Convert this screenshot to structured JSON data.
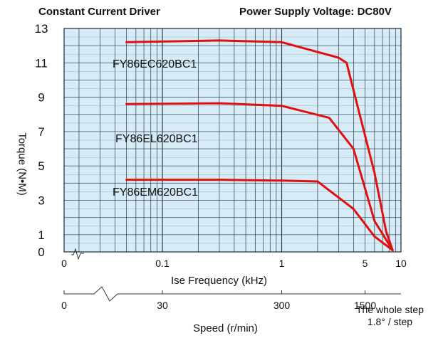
{
  "header": {
    "left_title": "Constant Current Driver",
    "right_title": "Power Supply Voltage: DC80V"
  },
  "chart_data": {
    "type": "line",
    "title": "Constant Current Driver",
    "subtitle": "Power Supply Voltage: DC80V",
    "xlabel": "Ise Frequency (kHz)",
    "ylabel": "Torque (N•M)",
    "xscale": "log",
    "xlim": [
      0.015,
      10
    ],
    "ylim": [
      0,
      13
    ],
    "x_ticks": [
      {
        "value": 0.1,
        "label": "0.1"
      },
      {
        "value": 1,
        "label": "1"
      },
      {
        "value": 5,
        "label": "5"
      },
      {
        "value": 10,
        "label": "10"
      }
    ],
    "x_zero_label": "0",
    "y_ticks": [
      {
        "value": 0,
        "label": "0"
      },
      {
        "value": 1,
        "label": "1"
      },
      {
        "value": 3,
        "label": "3"
      },
      {
        "value": 5,
        "label": "5"
      },
      {
        "value": 7,
        "label": "7"
      },
      {
        "value": 9,
        "label": "9"
      },
      {
        "value": 11,
        "label": "11"
      },
      {
        "value": 13,
        "label": "13"
      }
    ],
    "secondary_axis": {
      "label": "Speed (r/min)",
      "ticks": [
        {
          "value": 0,
          "label": "0"
        },
        {
          "value": 30,
          "label": "30",
          "at_khz": 0.1
        },
        {
          "value": 300,
          "label": "300",
          "at_khz": 1
        },
        {
          "value": 1500,
          "label": "1500",
          "at_khz": 5
        }
      ],
      "note": [
        "The whole step",
        "1.8° / step"
      ]
    },
    "series": [
      {
        "name": "FY86EC620BC1",
        "color": "#e01010",
        "x": [
          0.05,
          0.3,
          1,
          3,
          3.5,
          6,
          7.5,
          8.5
        ],
        "y": [
          12.2,
          12.3,
          12.2,
          11.3,
          11.0,
          4.6,
          1.2,
          0.1
        ]
      },
      {
        "name": "FY86EL620BC1",
        "color": "#e01010",
        "x": [
          0.05,
          0.3,
          1,
          2.5,
          4,
          6,
          8.5
        ],
        "y": [
          8.6,
          8.65,
          8.5,
          7.8,
          6.0,
          1.8,
          0.1
        ]
      },
      {
        "name": "FY86EM620BC1",
        "color": "#e01010",
        "x": [
          0.05,
          0.3,
          1,
          2,
          4,
          6,
          8.5
        ],
        "y": [
          4.2,
          4.2,
          4.15,
          4.1,
          2.5,
          0.9,
          0.1
        ]
      }
    ]
  }
}
